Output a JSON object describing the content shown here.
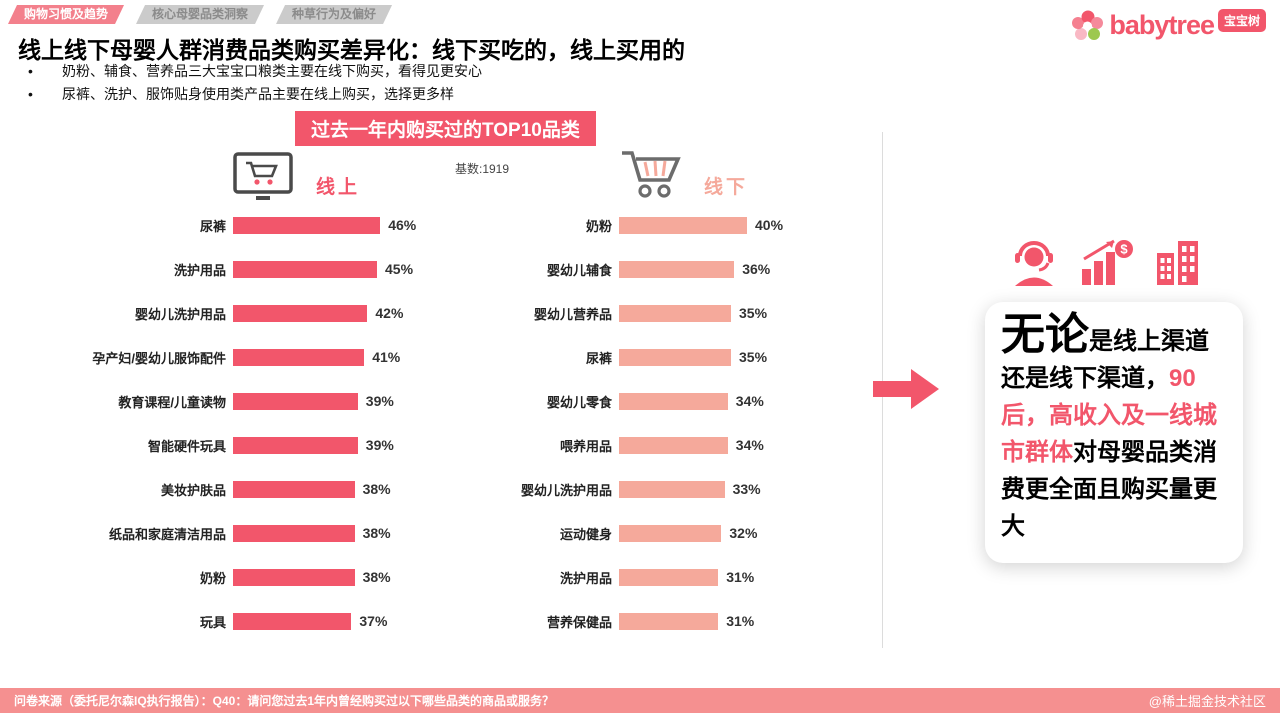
{
  "nav": {
    "tabs": [
      {
        "label": "购物习惯及趋势",
        "active": true
      },
      {
        "label": "核心母婴品类洞察",
        "active": false
      },
      {
        "label": "种草行为及偏好",
        "active": false
      }
    ]
  },
  "logo": {
    "brand": "babytree",
    "badge": "宝宝树",
    "icon": "flower-icon"
  },
  "header": {
    "title": "线上线下母婴人群消费品类购买差异化：线下买吃的，线上买用的",
    "bullets": [
      "奶粉、辅食、营养品三大宝宝口粮类主要在线下购买，看得见更安心",
      "尿裤、洗护、服饰贴身使用类产品主要在线上购买，选择更多样"
    ]
  },
  "banner": {
    "label": "过去一年内购买过的TOP10品类"
  },
  "base_note": "基数:1919",
  "chart_data": [
    {
      "type": "bar",
      "title": "线上",
      "orientation": "horizontal",
      "icon": "monitor-cart-icon",
      "unit": "%",
      "bar_color": "#f2566b",
      "xlim": [
        0,
        50
      ],
      "categories": [
        "尿裤",
        "洗护用品",
        "婴幼儿洗护用品",
        "孕产妇/婴幼儿服饰配件",
        "教育课程/儿童读物",
        "智能硬件玩具",
        "美妆护肤品",
        "纸品和家庭清洁用品",
        "奶粉",
        "玩具"
      ],
      "values": [
        46,
        45,
        42,
        41,
        39,
        39,
        38,
        38,
        38,
        37
      ]
    },
    {
      "type": "bar",
      "title": "线下",
      "orientation": "horizontal",
      "icon": "cart-icon",
      "unit": "%",
      "bar_color": "#f5a99b",
      "xlim": [
        0,
        50
      ],
      "categories": [
        "奶粉",
        "婴幼儿辅食",
        "婴幼儿营养品",
        "尿裤",
        "婴幼儿零食",
        "喂养用品",
        "婴幼儿洗护用品",
        "运动健身",
        "洗护用品",
        "营养保健品"
      ],
      "values": [
        40,
        36,
        35,
        35,
        34,
        34,
        33,
        32,
        31,
        31
      ]
    }
  ],
  "insight": {
    "icons": [
      "customer-service-icon",
      "growth-chart-icon",
      "buildings-icon"
    ],
    "lead": "无论",
    "parts": [
      {
        "text": "是线上渠道还是线下渠道，",
        "highlight": false
      },
      {
        "text": "90后，高收入及一线城市群体",
        "highlight": true
      },
      {
        "text": "对母婴品类消费更全面且购买量更大",
        "highlight": false
      }
    ]
  },
  "footer": {
    "source": "问卷来源（委托尼尔森IQ执行报告）：Q40：请问您过去1年内曾经购买过以下哪些品类的商品或服务？",
    "watermark": "@稀土掘金技术社区"
  },
  "colors": {
    "accent": "#f2566b",
    "offline_bar": "#f5a99b",
    "tab_active_bg": "#f3808c",
    "tab_inactive_bg": "#cbcbcb",
    "footer_bg": "#f59090",
    "highlight": "#f2566b"
  }
}
